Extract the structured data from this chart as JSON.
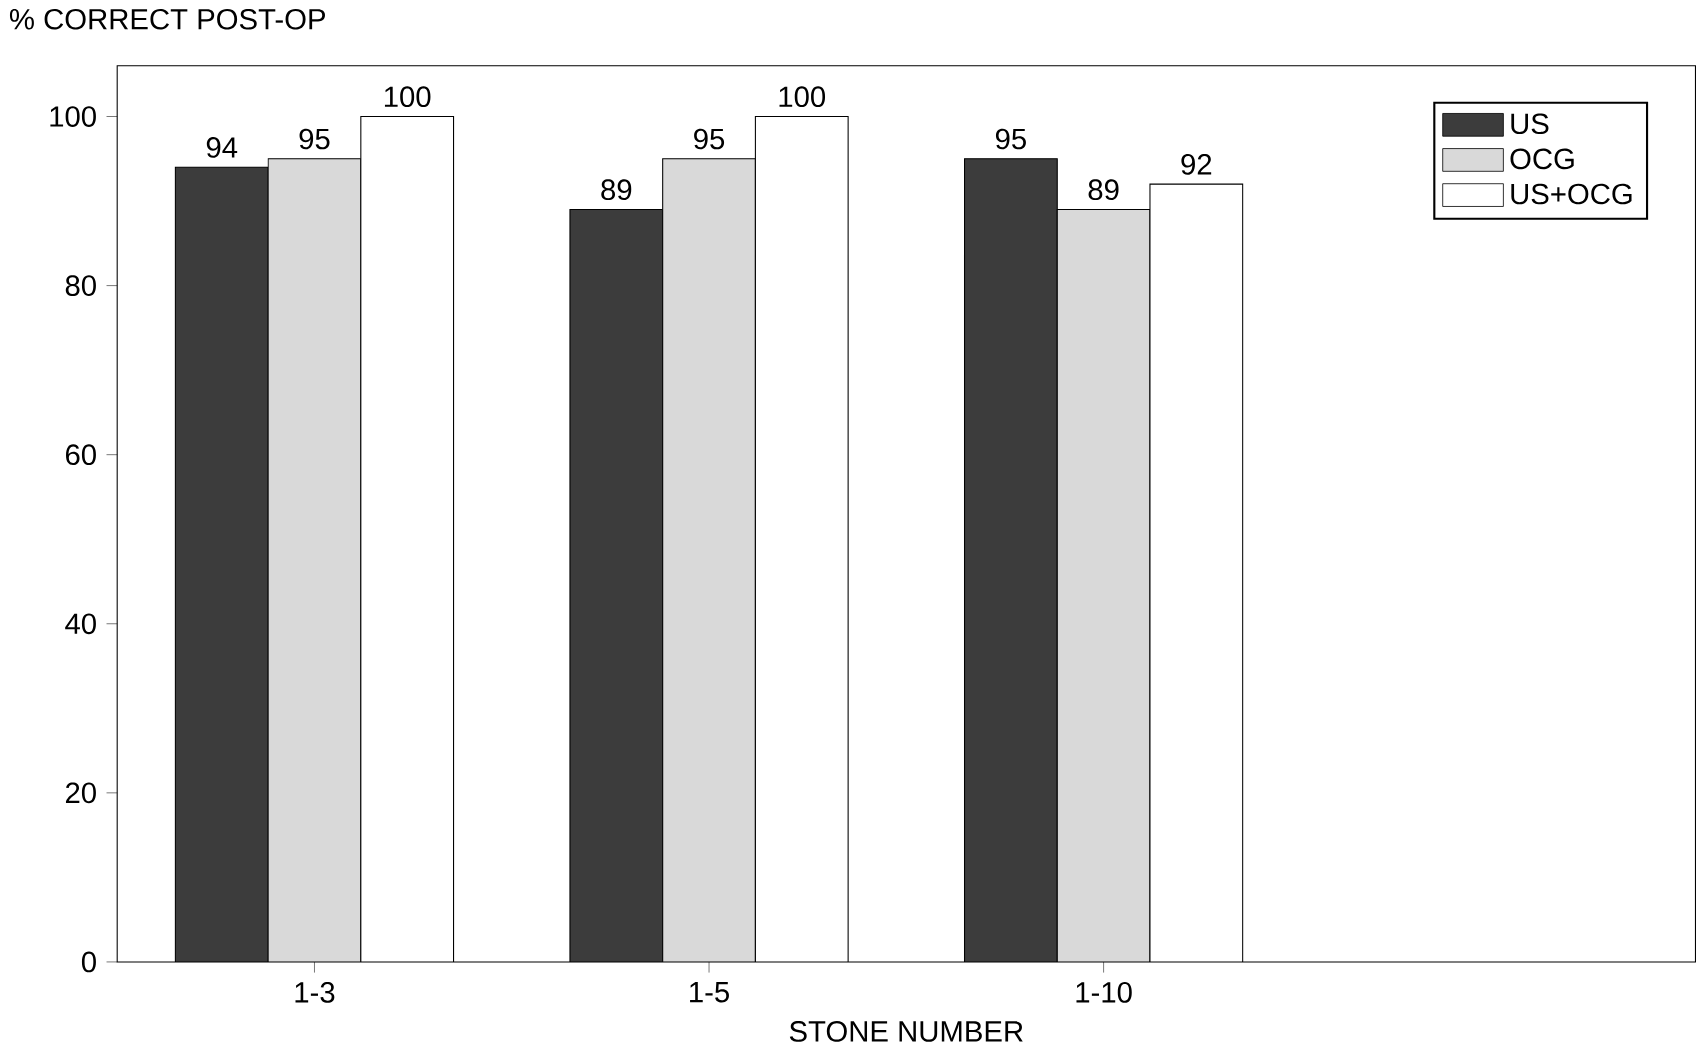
{
  "chart_data": {
    "type": "bar",
    "ylabel": "% CORRECT POST-OP",
    "xlabel": "STONE NUMBER",
    "categories": [
      "1-3",
      "1-5",
      "1-10"
    ],
    "series": [
      {
        "name": "US",
        "color": "#3c3c3c",
        "values": [
          94,
          89,
          95
        ]
      },
      {
        "name": "OCG",
        "color": "#d9d9d9",
        "values": [
          95,
          95,
          89
        ]
      },
      {
        "name": "US+OCG",
        "color": "#ffffff",
        "values": [
          100,
          100,
          92
        ]
      }
    ],
    "ylim": [
      0,
      106
    ],
    "yticks": [
      0,
      20,
      40,
      60,
      80,
      100
    ],
    "data_labels": true,
    "legend": "top right",
    "grid": false
  }
}
